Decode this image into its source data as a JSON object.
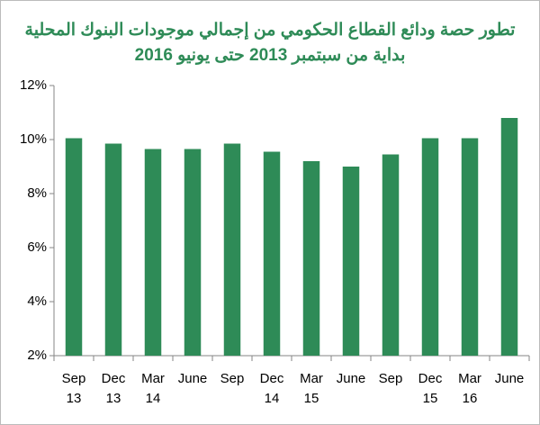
{
  "chart_data": {
    "type": "bar",
    "title": "تطور حصة ودائع القطاع الحكومي من إجمالي موجودات البنوك المحلية",
    "subtitle": "بداية من سبتمبر 2013 حتى يونيو 2016",
    "categories": [
      [
        "Sep",
        "13"
      ],
      [
        "Dec",
        "13"
      ],
      [
        "Mar",
        "14"
      ],
      [
        "June"
      ],
      [
        "Sep"
      ],
      [
        "Dec",
        "14"
      ],
      [
        "Mar",
        "15"
      ],
      [
        "June"
      ],
      [
        "Sep"
      ],
      [
        "Dec",
        "15"
      ],
      [
        "Mar",
        "16"
      ],
      [
        "June"
      ]
    ],
    "values": [
      10.05,
      9.85,
      9.65,
      9.65,
      9.85,
      9.55,
      9.2,
      9.0,
      9.45,
      10.05,
      10.05,
      10.8
    ],
    "color": "#2e8b57",
    "ylim": [
      2,
      12
    ],
    "yticks": [
      {
        "value": 2,
        "label": "2%"
      },
      {
        "value": 4,
        "label": "4%"
      },
      {
        "value": 6,
        "label": "6%"
      },
      {
        "value": 8,
        "label": "8%"
      },
      {
        "value": 10,
        "label": "10%"
      },
      {
        "value": 12,
        "label": "12%"
      }
    ],
    "grid": false
  }
}
